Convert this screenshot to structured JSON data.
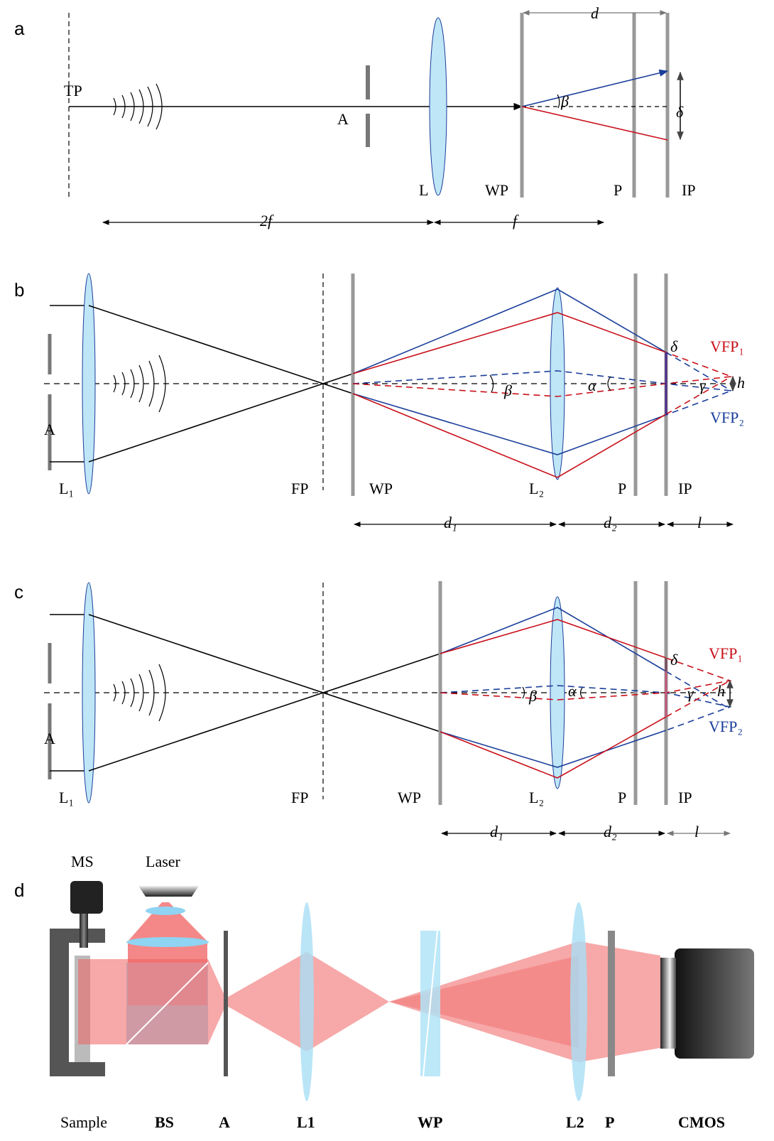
{
  "panel_a": {
    "label": "a",
    "TP": "TP",
    "A": "A",
    "L": "L",
    "WP": "WP",
    "P": "P",
    "IP": "IP",
    "d": "d",
    "beta": "β",
    "delta": "δ",
    "two_f": "2f",
    "f": "f"
  },
  "panel_b": {
    "label": "b",
    "L1": "L₁",
    "A": "A",
    "FP": "FP",
    "WP": "WP",
    "L2": "L₂",
    "P": "P",
    "IP": "IP",
    "VFP1": "VFP₁",
    "VFP2": "VFP₂",
    "delta": "δ",
    "h": "h",
    "beta": "β",
    "alpha": "α",
    "gamma": "γ",
    "d1": "d₁",
    "d2": "d₂",
    "l": "l"
  },
  "panel_c": {
    "label": "c",
    "L1": "L₁",
    "A": "A",
    "FP": "FP",
    "WP": "WP",
    "L2": "L₂",
    "P": "P",
    "IP": "IP",
    "VFP1": "VFP₁",
    "VFP2": "VFP₂",
    "delta": "δ",
    "h": "h",
    "beta": "β",
    "alpha": "α",
    "gamma": "γ",
    "d1": "d₁",
    "d2": "d₂",
    "l": "l"
  },
  "panel_d": {
    "label": "d",
    "MS": "MS",
    "Laser": "Laser",
    "Sample": "Sample",
    "BS": "BS",
    "A": "A",
    "L1": "L1",
    "WP": "WP",
    "L2": "L2",
    "P": "P",
    "CMOS": "CMOS"
  }
}
